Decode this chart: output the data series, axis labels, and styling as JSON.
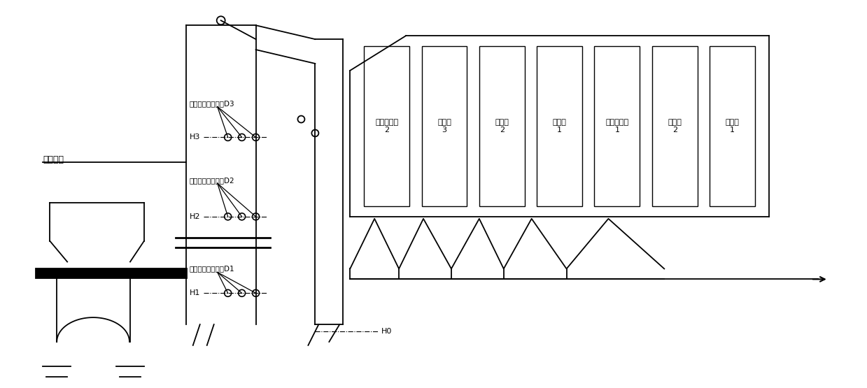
{
  "bg_color": "#ffffff",
  "line_color": "#000000",
  "fig_width": 12.39,
  "fig_height": 5.55,
  "labels": {
    "secondary_fan": "二次风机",
    "top_temp": "炉腹顶部温度测点D3",
    "mid_temp": "炉腹中部温度测点D2",
    "bot_temp": "炉腹底部温度测点D1",
    "H1": "H1",
    "H2": "H2",
    "H3": "H3",
    "H0": "H0",
    "heat_exchanger_labels": [
      "蔷发受热面\n2",
      "过热器\n3",
      "过热器\n2",
      "过热器\n1",
      "蔷发受热面\n1",
      "省煤器\n2",
      "省煤器\n1"
    ]
  }
}
